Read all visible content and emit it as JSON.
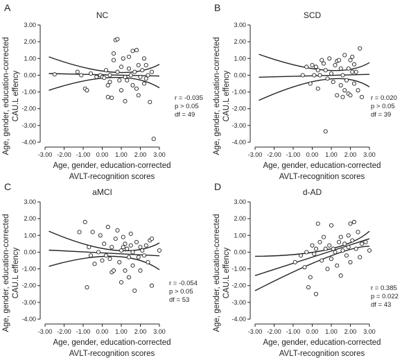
{
  "chart_data": [
    {
      "letter": "A",
      "title": "NC",
      "type": "scatter",
      "xlabel": [
        "Age, gender, education-corrected",
        "AVLT-recognition scores"
      ],
      "ylabel": [
        "Age, gender, education-corrected",
        "CAU.L effency"
      ],
      "xticks": [
        "-3.00",
        "-2.00",
        "-1.00",
        "0.00",
        "1.00",
        "2.00",
        "3.00"
      ],
      "yticks": [
        "3.00",
        "2.00",
        "1.00",
        "0.00",
        "-1.00",
        "-2.00",
        "-3.00",
        "-4.00"
      ],
      "xlim": [
        -3,
        3
      ],
      "ylim": [
        -4,
        3
      ],
      "stats": [
        "r = -0.035",
        "p > 0.05",
        "df = 49"
      ],
      "fit": {
        "center": [
          [
            -2.8,
            0.1
          ],
          [
            3.0,
            -0.05
          ]
        ],
        "upper": [
          [
            -2.8,
            1.1
          ],
          [
            0.6,
            0.18
          ],
          [
            3.0,
            0.65
          ]
        ],
        "lower": [
          [
            -2.8,
            -0.9
          ],
          [
            0.6,
            -0.13
          ],
          [
            3.0,
            -0.75
          ]
        ]
      },
      "points": [
        [
          -2.5,
          0.05
        ],
        [
          -1.3,
          0.2
        ],
        [
          -1.1,
          0.0
        ],
        [
          -0.9,
          -0.8
        ],
        [
          -0.8,
          -0.9
        ],
        [
          -0.6,
          0.1
        ],
        [
          -0.3,
          -0.1
        ],
        [
          -0.1,
          0.0
        ],
        [
          0.0,
          -0.1
        ],
        [
          0.1,
          -0.15
        ],
        [
          0.2,
          0.3
        ],
        [
          0.3,
          -0.6
        ],
        [
          0.3,
          -1.3
        ],
        [
          0.4,
          0.0
        ],
        [
          0.4,
          -0.4
        ],
        [
          0.5,
          -1.35
        ],
        [
          0.6,
          1.3
        ],
        [
          0.6,
          0.9
        ],
        [
          0.7,
          2.1
        ],
        [
          0.8,
          2.15
        ],
        [
          0.8,
          0.2
        ],
        [
          0.9,
          -0.3
        ],
        [
          1.0,
          0.5
        ],
        [
          1.0,
          -0.9
        ],
        [
          1.1,
          1.0
        ],
        [
          1.2,
          -0.1
        ],
        [
          1.2,
          -1.55
        ],
        [
          1.3,
          -0.3
        ],
        [
          1.4,
          0.4
        ],
        [
          1.4,
          1.1
        ],
        [
          1.5,
          0.0
        ],
        [
          1.6,
          1.45
        ],
        [
          1.6,
          -0.6
        ],
        [
          1.7,
          0.2
        ],
        [
          1.8,
          1.5
        ],
        [
          1.8,
          -0.8
        ],
        [
          1.9,
          -1.2
        ],
        [
          1.9,
          0.6
        ],
        [
          2.0,
          -0.1
        ],
        [
          2.1,
          0.3
        ],
        [
          2.2,
          -0.5
        ],
        [
          2.2,
          1.0
        ],
        [
          2.3,
          0.6
        ],
        [
          2.3,
          -0.2
        ],
        [
          2.4,
          0.0
        ],
        [
          2.5,
          -1.6
        ],
        [
          2.6,
          0.2
        ],
        [
          2.7,
          -3.8
        ]
      ]
    },
    {
      "letter": "B",
      "title": "SCD",
      "type": "scatter",
      "xlabel": [
        "Age, gender, education-corrected",
        "AVLT-recognition scores"
      ],
      "ylabel": [
        "Age, gender, education-corrected",
        "CAU.L effency"
      ],
      "xticks": [
        "-3.00",
        "-2.00",
        "-1.00",
        "0.00",
        "1.00",
        "2.00",
        "3.00"
      ],
      "yticks": [
        "3.00",
        "2.00",
        "1.00",
        "0.00",
        "-1.00",
        "-2.00",
        "-3.00",
        "-4.00"
      ],
      "xlim": [
        -3,
        3
      ],
      "ylim": [
        -4,
        3
      ],
      "stats": [
        "r = 0.020",
        "p > 0.05",
        "df = 39"
      ],
      "fit": {
        "center": [
          [
            -2.8,
            -0.12
          ],
          [
            3.0,
            0.05
          ]
        ],
        "upper": [
          [
            -2.8,
            1.25
          ],
          [
            0.7,
            0.3
          ],
          [
            3.0,
            0.75
          ]
        ],
        "lower": [
          [
            -2.8,
            -1.5
          ],
          [
            0.7,
            -0.25
          ],
          [
            3.0,
            -0.7
          ]
        ]
      },
      "points": [
        [
          -0.5,
          0.0
        ],
        [
          -0.3,
          0.5
        ],
        [
          -0.1,
          -0.5
        ],
        [
          0.0,
          0.6
        ],
        [
          0.1,
          0.0
        ],
        [
          0.2,
          0.5
        ],
        [
          0.3,
          -0.8
        ],
        [
          0.3,
          0.3
        ],
        [
          0.4,
          0.0
        ],
        [
          0.5,
          0.9
        ],
        [
          0.6,
          0.7
        ],
        [
          0.7,
          -3.35
        ],
        [
          0.7,
          0.3
        ],
        [
          0.8,
          -0.2
        ],
        [
          0.9,
          1.0
        ],
        [
          1.0,
          0.1
        ],
        [
          1.1,
          -0.4
        ],
        [
          1.2,
          0.6
        ],
        [
          1.3,
          -1.2
        ],
        [
          1.3,
          0.85
        ],
        [
          1.4,
          0.9
        ],
        [
          1.5,
          -0.6
        ],
        [
          1.5,
          0.4
        ],
        [
          1.6,
          -1.3
        ],
        [
          1.6,
          0.0
        ],
        [
          1.7,
          -0.9
        ],
        [
          1.7,
          1.2
        ],
        [
          1.8,
          -0.3
        ],
        [
          1.9,
          0.4
        ],
        [
          1.9,
          -1.1
        ],
        [
          2.0,
          0.9
        ],
        [
          2.0,
          -1.2
        ],
        [
          2.1,
          1.1
        ],
        [
          2.1,
          0.2
        ],
        [
          2.2,
          -0.5
        ],
        [
          2.2,
          0.65
        ],
        [
          2.3,
          0.2
        ],
        [
          2.4,
          -0.9
        ],
        [
          2.5,
          1.6
        ],
        [
          2.6,
          -1.3
        ]
      ]
    },
    {
      "letter": "C",
      "title": "aMCI",
      "type": "scatter",
      "xlabel": [
        "Age, gender, education-corrected",
        "AVLT-recognition scores"
      ],
      "ylabel": [
        "Age, gender, education-corrected",
        "CAU.L effency"
      ],
      "xticks": [
        "-3.00",
        "-2.00",
        "-1.00",
        "0.00",
        "1.00",
        "2.00",
        "3.00"
      ],
      "yticks": [
        "3.00",
        "2.00",
        "1.00",
        "0.00",
        "-1.00",
        "-2.00",
        "-3.00",
        "-4.00"
      ],
      "xlim": [
        -3,
        3
      ],
      "ylim": [
        -4,
        3
      ],
      "stats": [
        "r = -0.054",
        "p > 0.05",
        "df = 53"
      ],
      "fit": {
        "center": [
          [
            -2.8,
            0.12
          ],
          [
            3.0,
            -0.22
          ]
        ],
        "upper": [
          [
            -2.8,
            1.25
          ],
          [
            0.6,
            0.12
          ],
          [
            3.0,
            0.55
          ]
        ],
        "lower": [
          [
            -2.8,
            -0.85
          ],
          [
            0.6,
            -0.25
          ],
          [
            3.0,
            -1.05
          ]
        ]
      },
      "points": [
        [
          -1.2,
          1.2
        ],
        [
          -0.9,
          1.8
        ],
        [
          -0.8,
          -2.1
        ],
        [
          -0.7,
          0.3
        ],
        [
          -0.6,
          -0.2
        ],
        [
          -0.5,
          1.2
        ],
        [
          -0.4,
          -0.7
        ],
        [
          -0.2,
          0.0
        ],
        [
          -0.1,
          1.0
        ],
        [
          0.0,
          -0.5
        ],
        [
          0.1,
          0.5
        ],
        [
          0.2,
          -0.2
        ],
        [
          0.3,
          1.5
        ],
        [
          0.4,
          -0.4
        ],
        [
          0.5,
          0.3
        ],
        [
          0.5,
          -1.2
        ],
        [
          0.6,
          -1.1
        ],
        [
          0.7,
          0.8
        ],
        [
          0.8,
          1.3
        ],
        [
          0.9,
          -0.6
        ],
        [
          1.0,
          0.1
        ],
        [
          1.0,
          -1.8
        ],
        [
          1.1,
          0.3
        ],
        [
          1.1,
          0.9
        ],
        [
          1.2,
          0.5
        ],
        [
          1.2,
          -1.1
        ],
        [
          1.3,
          0.2
        ],
        [
          1.4,
          -0.3
        ],
        [
          1.4,
          -1.5
        ],
        [
          1.5,
          0.4
        ],
        [
          1.5,
          1.1
        ],
        [
          1.6,
          -0.8
        ],
        [
          1.6,
          0.0
        ],
        [
          1.7,
          -2.3
        ],
        [
          1.8,
          0.6
        ],
        [
          1.9,
          -0.3
        ],
        [
          2.0,
          0.3
        ],
        [
          2.0,
          -1.1
        ],
        [
          2.1,
          0.1
        ],
        [
          2.2,
          -0.2
        ],
        [
          2.3,
          0.4
        ],
        [
          2.4,
          -0.6
        ],
        [
          2.5,
          0.7
        ],
        [
          2.6,
          0.8
        ],
        [
          2.6,
          -2.0
        ],
        [
          3.0,
          0.1
        ]
      ]
    },
    {
      "letter": "D",
      "title": "d-AD",
      "type": "scatter",
      "xlabel": [
        "Age, gender, education-corrected",
        "AVLT-recognition scores"
      ],
      "ylabel": [
        "Age, gender, education-corrected",
        "CAU.L effency"
      ],
      "xticks": [
        "-3.00",
        "-2.00",
        "-1.00",
        "0.00",
        "1.00",
        "2.00",
        "3.00"
      ],
      "yticks": [
        "3.00",
        "2.00",
        "1.00",
        "0.00",
        "-1.00",
        "-2.00",
        "-3.00",
        "-4.00"
      ],
      "xlim": [
        -3,
        3
      ],
      "ylim": [
        -4,
        3
      ],
      "stats": [
        "r = 0.385",
        "p = 0.022",
        "df = 43"
      ],
      "fit": {
        "center": [
          [
            -3.0,
            -1.4
          ],
          [
            3.0,
            0.8
          ]
        ],
        "upper": [
          [
            -3.0,
            -0.25
          ],
          [
            0.8,
            0.15
          ],
          [
            3.0,
            1.25
          ]
        ],
        "lower": [
          [
            -3.0,
            -2.3
          ],
          [
            0.8,
            -0.3
          ],
          [
            3.0,
            0.35
          ]
        ]
      },
      "points": [
        [
          -0.9,
          -0.6
        ],
        [
          -0.6,
          -0.2
        ],
        [
          -0.4,
          -0.9
        ],
        [
          -0.3,
          0.0
        ],
        [
          -0.2,
          -2.1
        ],
        [
          -0.1,
          -1.5
        ],
        [
          0.0,
          0.4
        ],
        [
          0.1,
          -0.1
        ],
        [
          0.2,
          0.2
        ],
        [
          0.2,
          -2.5
        ],
        [
          0.3,
          1.7
        ],
        [
          0.4,
          0.6
        ],
        [
          0.5,
          -0.5
        ],
        [
          0.6,
          0.9
        ],
        [
          0.7,
          0.2
        ],
        [
          0.8,
          -1.0
        ],
        [
          0.9,
          0.4
        ],
        [
          1.0,
          1.6
        ],
        [
          1.0,
          -0.4
        ],
        [
          1.1,
          0.2
        ],
        [
          1.2,
          0.0
        ],
        [
          1.3,
          -0.8
        ],
        [
          1.4,
          0.6
        ],
        [
          1.5,
          -1.4
        ],
        [
          1.5,
          0.9
        ],
        [
          1.6,
          0.1
        ],
        [
          1.7,
          0.5
        ],
        [
          1.8,
          -0.2
        ],
        [
          1.9,
          1.0
        ],
        [
          1.9,
          0.3
        ],
        [
          2.0,
          1.7
        ],
        [
          2.0,
          -0.6
        ],
        [
          2.1,
          0.7
        ],
        [
          2.2,
          1.8
        ],
        [
          2.3,
          0.2
        ],
        [
          2.4,
          1.2
        ],
        [
          2.5,
          -0.3
        ],
        [
          2.6,
          0.5
        ],
        [
          2.8,
          0.6
        ],
        [
          3.0,
          0.1
        ]
      ]
    }
  ]
}
